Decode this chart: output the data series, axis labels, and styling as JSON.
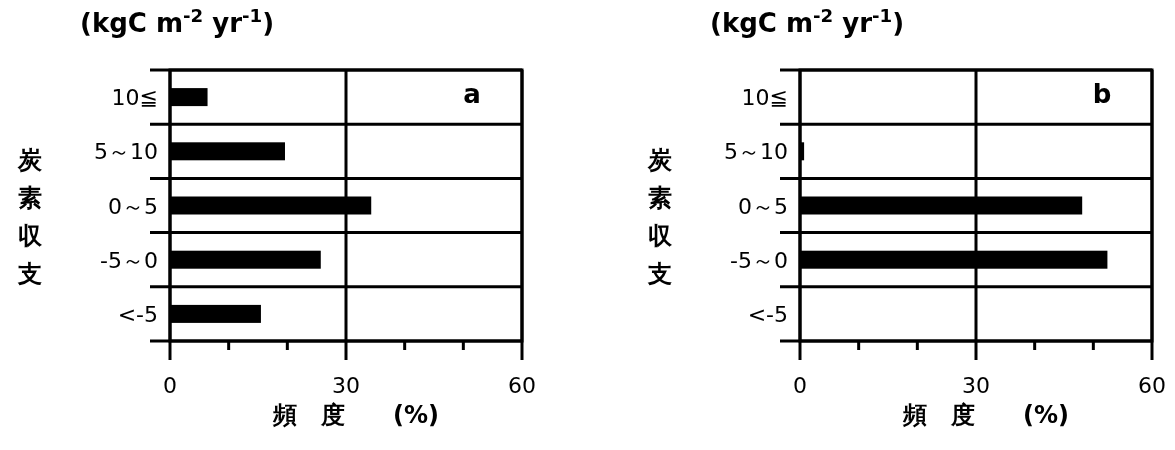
{
  "chart_data": [
    {
      "type": "bar",
      "orientation": "horizontal",
      "title": "(kgC m$^{-2}$ yr$^{-1}$)",
      "ylabel": "炭素収支",
      "xlabel": "頻　度　　(%)",
      "annotations": [
        "a"
      ],
      "categories": [
        "10≦",
        "5～10",
        "0～5",
        "-5～0",
        "<-5"
      ],
      "values": [
        6.4,
        19.6,
        34.3,
        25.7,
        15.5
      ],
      "color": "#000000",
      "xlim": [
        0,
        60
      ],
      "xticks": [
        0,
        {
          "value": 10,
          "label": null
        },
        {
          "value": 20,
          "label": null
        },
        30,
        {
          "value": 40,
          "label": null
        },
        {
          "value": 50,
          "label": null
        },
        60
      ],
      "grid": true
    },
    {
      "type": "bar",
      "orientation": "horizontal",
      "title": "(kgC m$^{-2}$ yr$^{-1}$)",
      "ylabel": "炭素収支",
      "xlabel": "頻　度　　(%)",
      "annotations": [
        "b"
      ],
      "categories": [
        "10≦",
        "5～10",
        "0～5",
        "-5～0",
        "<-5"
      ],
      "values": [
        0,
        0.7,
        48.1,
        52.4,
        0
      ],
      "color": "#000000",
      "xlim": [
        0,
        60
      ],
      "xticks": [
        0,
        {
          "value": 10,
          "label": null
        },
        {
          "value": 20,
          "label": null
        },
        30,
        {
          "value": 40,
          "label": null
        },
        {
          "value": 50,
          "label": null
        },
        60
      ],
      "grid": true
    }
  ]
}
